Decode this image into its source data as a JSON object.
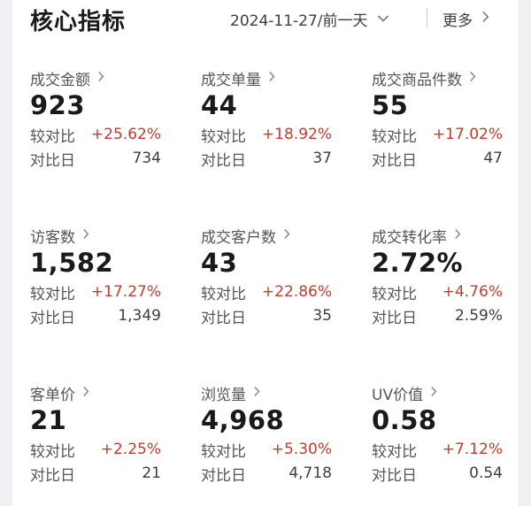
{
  "header": {
    "title": "核心指标",
    "date": "2024-11-27/前一天",
    "more_label": "更多"
  },
  "labels": {
    "compare": "较对比",
    "base_day": "对比日"
  },
  "colors": {
    "increase": "#c33a2e",
    "text_primary": "#1a1a1a",
    "text_secondary": "#555555"
  },
  "icons": {
    "date_chevron": "chevron-down-icon",
    "more_chevron": "chevron-right-icon",
    "metric_chevron": "chevron-right-icon"
  },
  "metrics": [
    {
      "label": "成交金额",
      "value": "923",
      "change": "+25.62%",
      "base": "734"
    },
    {
      "label": "成交单量",
      "value": "44",
      "change": "+18.92%",
      "base": "37"
    },
    {
      "label": "成交商品件数",
      "value": "55",
      "change": "+17.02%",
      "base": "47"
    },
    {
      "label": "访客数",
      "value": "1,582",
      "change": "+17.27%",
      "base": "1,349"
    },
    {
      "label": "成交客户数",
      "value": "43",
      "change": "+22.86%",
      "base": "35"
    },
    {
      "label": "成交转化率",
      "value": "2.72%",
      "change": "+4.76%",
      "base": "2.59%"
    },
    {
      "label": "客单价",
      "value": "21",
      "change": "+2.25%",
      "base": "21"
    },
    {
      "label": "浏览量",
      "value": "4,968",
      "change": "+5.30%",
      "base": "4,718"
    },
    {
      "label": "UV价值",
      "value": "0.58",
      "change": "+7.12%",
      "base": "0.54"
    }
  ]
}
